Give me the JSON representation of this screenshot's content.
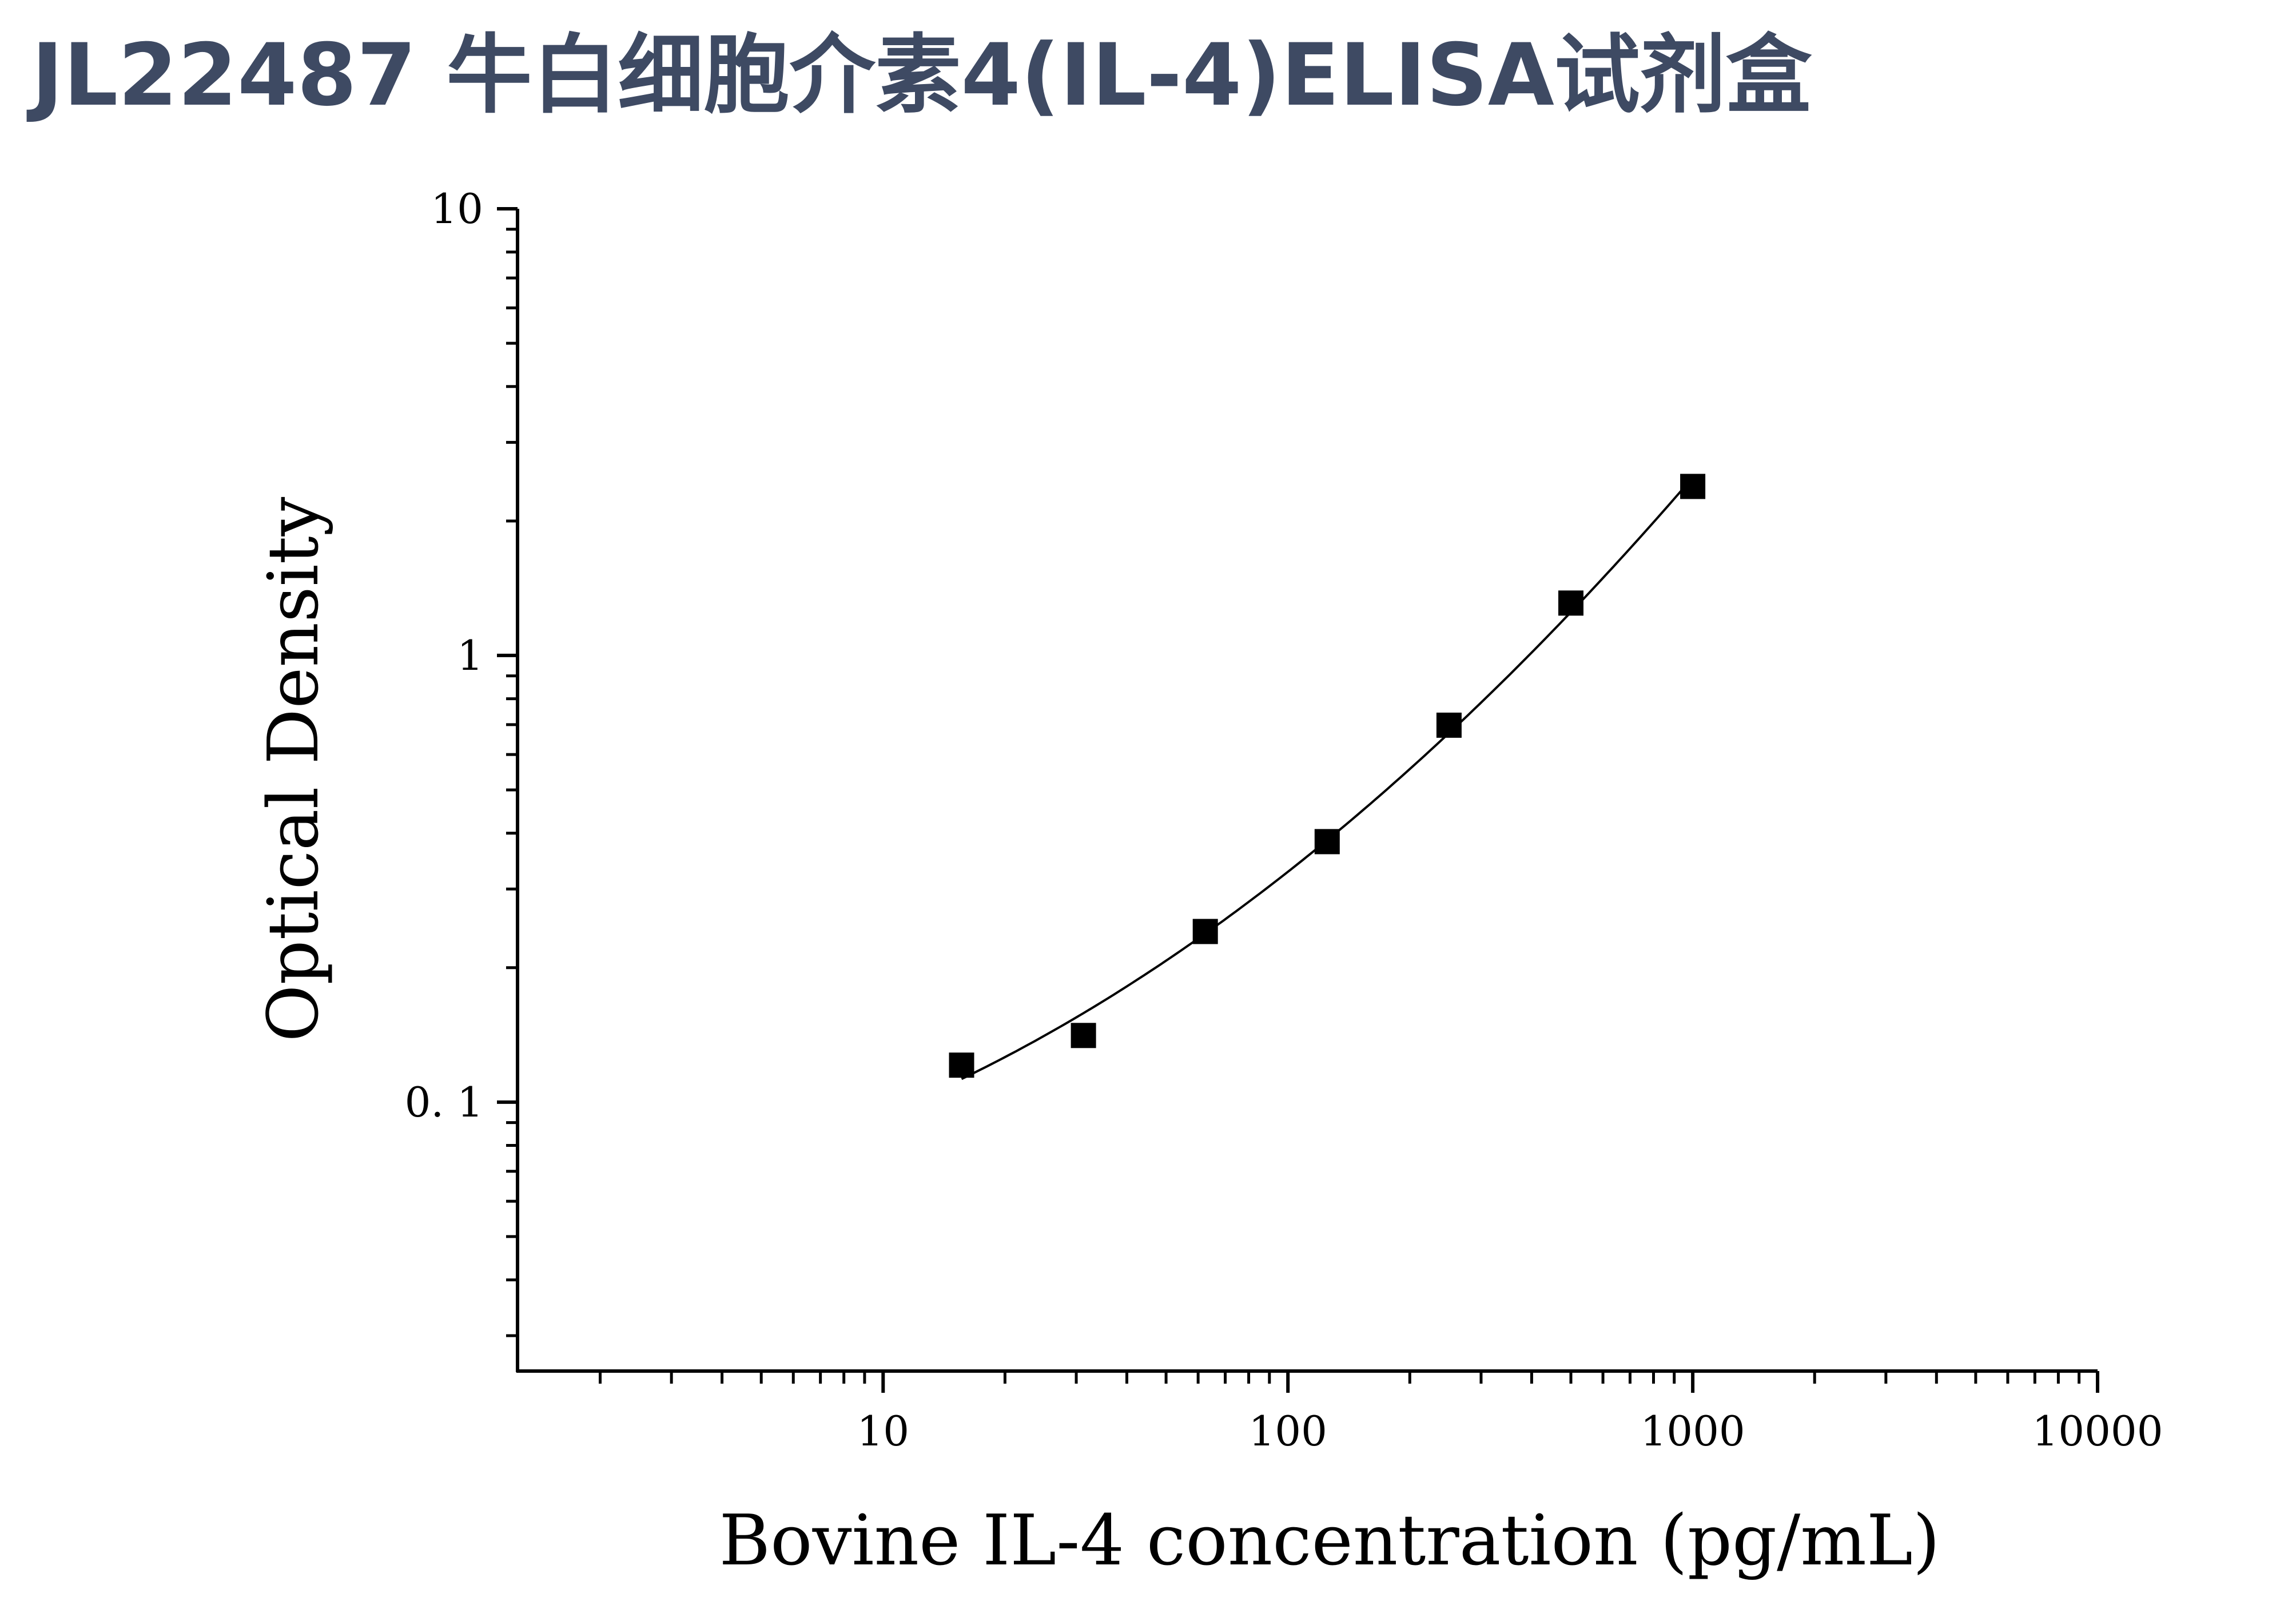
{
  "page": {
    "title": "JL22487 牛白细胞介素4(IL-4)ELISA试剂盒"
  },
  "chart_data": {
    "type": "scatter",
    "title": "",
    "xlabel": "Bovine IL-4 concentration (pg/mL)",
    "ylabel": "Optical Density",
    "xscale": "log",
    "yscale": "log",
    "xlim": [
      1.25,
      10000
    ],
    "ylim": [
      0.025,
      10
    ],
    "x_ticks": [
      {
        "value": 10,
        "label": "10"
      },
      {
        "value": 100,
        "label": "100"
      },
      {
        "value": 1000,
        "label": "1000"
      },
      {
        "value": 10000,
        "label": "10000"
      }
    ],
    "y_ticks": [
      {
        "value": 0.1,
        "label": "0. 1"
      },
      {
        "value": 1,
        "label": "1"
      },
      {
        "value": 10,
        "label": "10"
      }
    ],
    "series": [
      {
        "marker": "square",
        "fit_line": true,
        "x": [
          15.625,
          31.25,
          62.5,
          125,
          250,
          500,
          1000
        ],
        "y": [
          0.121,
          0.141,
          0.241,
          0.383,
          0.698,
          1.31,
          2.39
        ]
      }
    ],
    "grid": false,
    "colors": {
      "marker": "#000000",
      "line": "#000000",
      "title": "#3e4a63"
    }
  }
}
